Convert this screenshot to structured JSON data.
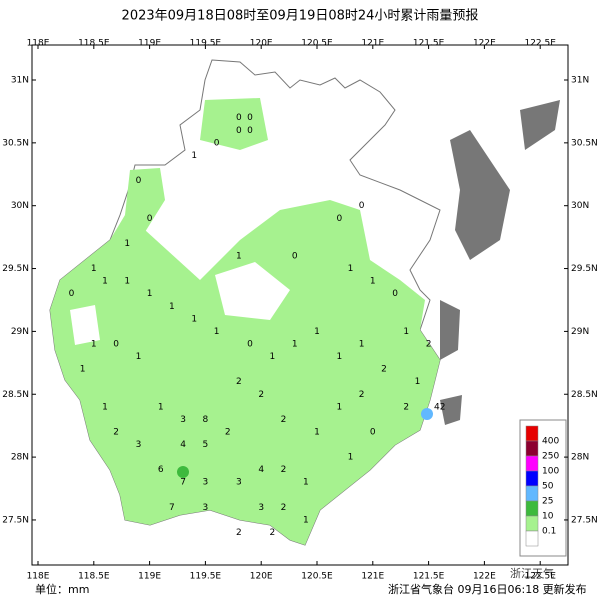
{
  "title": "2023年09月18日08时至09月19日08时24小时累计雨量预报",
  "lon_ticks": [
    {
      "value": 118,
      "label": "118E"
    },
    {
      "value": 118.5,
      "label": "118.5E"
    },
    {
      "value": 119,
      "label": "119E"
    },
    {
      "value": 119.5,
      "label": "119.5E"
    },
    {
      "value": 120,
      "label": "120E"
    },
    {
      "value": 120.5,
      "label": "120.5E"
    },
    {
      "value": 121,
      "label": "121E"
    },
    {
      "value": 121.5,
      "label": "121.5E"
    },
    {
      "value": 122,
      "label": "122E"
    },
    {
      "value": 122.5,
      "label": "122.5E"
    }
  ],
  "lat_ticks": [
    {
      "value": 31,
      "label": "31N"
    },
    {
      "value": 30.5,
      "label": "30.5N"
    },
    {
      "value": 30,
      "label": "30N"
    },
    {
      "value": 29.5,
      "label": "29.5N"
    },
    {
      "value": 29,
      "label": "29N"
    },
    {
      "value": 28.5,
      "label": "28.5N"
    },
    {
      "value": 28,
      "label": "28N"
    },
    {
      "value": 27.5,
      "label": "27.5N"
    }
  ],
  "legend": [
    {
      "label": "400",
      "color": "#e60000"
    },
    {
      "label": "250",
      "color": "#8c0030"
    },
    {
      "label": "100",
      "color": "#ff00ff"
    },
    {
      "label": "50",
      "color": "#0000ff"
    },
    {
      "label": "25",
      "color": "#61b8ff"
    },
    {
      "label": "10",
      "color": "#3dba3d"
    },
    {
      "label": "0.1",
      "color": "#a6f28f"
    }
  ],
  "stations": [
    {
      "lon": 119.8,
      "lat": 30.7,
      "value": 0
    },
    {
      "lon": 119.9,
      "lat": 30.7,
      "value": 0
    },
    {
      "lon": 119.8,
      "lat": 30.6,
      "value": 0
    },
    {
      "lon": 119.9,
      "lat": 30.6,
      "value": 0
    },
    {
      "lon": 119.6,
      "lat": 30.5,
      "value": 0
    },
    {
      "lon": 119.4,
      "lat": 30.4,
      "value": 1
    },
    {
      "lon": 118.9,
      "lat": 30.2,
      "value": 0
    },
    {
      "lon": 119.0,
      "lat": 29.9,
      "value": 0
    },
    {
      "lon": 118.8,
      "lat": 29.7,
      "value": 1
    },
    {
      "lon": 118.5,
      "lat": 29.5,
      "value": 1
    },
    {
      "lon": 118.3,
      "lat": 29.3,
      "value": 0
    },
    {
      "lon": 118.6,
      "lat": 29.4,
      "value": 1
    },
    {
      "lon": 118.8,
      "lat": 29.4,
      "value": 1
    },
    {
      "lon": 119.0,
      "lat": 29.3,
      "value": 1
    },
    {
      "lon": 119.2,
      "lat": 29.2,
      "value": 1
    },
    {
      "lon": 119.4,
      "lat": 29.1,
      "value": 1
    },
    {
      "lon": 119.6,
      "lat": 29.0,
      "value": 1
    },
    {
      "lon": 119.8,
      "lat": 29.6,
      "value": 1
    },
    {
      "lon": 120.3,
      "lat": 29.6,
      "value": 0
    },
    {
      "lon": 120.7,
      "lat": 29.9,
      "value": 0
    },
    {
      "lon": 120.9,
      "lat": 30.0,
      "value": 0
    },
    {
      "lon": 120.8,
      "lat": 29.5,
      "value": 1
    },
    {
      "lon": 121.0,
      "lat": 29.4,
      "value": 1
    },
    {
      "lon": 121.2,
      "lat": 29.3,
      "value": 0
    },
    {
      "lon": 121.3,
      "lat": 29.0,
      "value": 1
    },
    {
      "lon": 121.5,
      "lat": 28.9,
      "value": 2
    },
    {
      "lon": 121.4,
      "lat": 28.6,
      "value": 1
    },
    {
      "lon": 121.3,
      "lat": 28.4,
      "value": 2
    },
    {
      "lon": 121.1,
      "lat": 28.7,
      "value": 2
    },
    {
      "lon": 120.9,
      "lat": 28.9,
      "value": 1
    },
    {
      "lon": 120.7,
      "lat": 28.8,
      "value": 1
    },
    {
      "lon": 120.5,
      "lat": 29.0,
      "value": 1
    },
    {
      "lon": 120.3,
      "lat": 28.9,
      "value": 1
    },
    {
      "lon": 120.1,
      "lat": 28.8,
      "value": 1
    },
    {
      "lon": 119.9,
      "lat": 28.9,
      "value": 0
    },
    {
      "lon": 118.9,
      "lat": 28.8,
      "value": 1
    },
    {
      "lon": 118.7,
      "lat": 28.9,
      "value": 0
    },
    {
      "lon": 118.5,
      "lat": 28.9,
      "value": 1
    },
    {
      "lon": 118.4,
      "lat": 28.7,
      "value": 1
    },
    {
      "lon": 118.6,
      "lat": 28.4,
      "value": 1
    },
    {
      "lon": 118.7,
      "lat": 28.2,
      "value": 2
    },
    {
      "lon": 118.9,
      "lat": 28.1,
      "value": 3
    },
    {
      "lon": 119.1,
      "lat": 28.4,
      "value": 1
    },
    {
      "lon": 119.3,
      "lat": 28.3,
      "value": 3
    },
    {
      "lon": 119.5,
      "lat": 28.3,
      "value": 8
    },
    {
      "lon": 119.3,
      "lat": 28.1,
      "value": 4
    },
    {
      "lon": 119.5,
      "lat": 28.1,
      "value": 5
    },
    {
      "lon": 119.7,
      "lat": 28.2,
      "value": 2
    },
    {
      "lon": 119.1,
      "lat": 27.9,
      "value": 6
    },
    {
      "lon": 119.3,
      "lat": 27.8,
      "value": 7
    },
    {
      "lon": 119.5,
      "lat": 27.8,
      "value": 3
    },
    {
      "lon": 119.2,
      "lat": 27.6,
      "value": 7
    },
    {
      "lon": 119.5,
      "lat": 27.6,
      "value": 3
    },
    {
      "lon": 119.8,
      "lat": 27.8,
      "value": 3
    },
    {
      "lon": 120.0,
      "lat": 27.9,
      "value": 4
    },
    {
      "lon": 120.2,
      "lat": 27.9,
      "value": 2
    },
    {
      "lon": 120.4,
      "lat": 27.8,
      "value": 1
    },
    {
      "lon": 120.0,
      "lat": 27.6,
      "value": 3
    },
    {
      "lon": 120.2,
      "lat": 27.6,
      "value": 2
    },
    {
      "lon": 120.4,
      "lat": 27.5,
      "value": 1
    },
    {
      "lon": 119.8,
      "lat": 27.4,
      "value": 2
    },
    {
      "lon": 120.1,
      "lat": 27.4,
      "value": 2
    },
    {
      "lon": 120.5,
      "lat": 28.2,
      "value": 1
    },
    {
      "lon": 120.7,
      "lat": 28.4,
      "value": 1
    },
    {
      "lon": 120.9,
      "lat": 28.5,
      "value": 2
    },
    {
      "lon": 121.0,
      "lat": 28.2,
      "value": 0
    },
    {
      "lon": 120.8,
      "lat": 28.0,
      "value": 1
    },
    {
      "lon": 120.2,
      "lat": 28.3,
      "value": 2
    },
    {
      "lon": 120.0,
      "lat": 28.5,
      "value": 2
    },
    {
      "lon": 119.8,
      "lat": 28.6,
      "value": 2
    },
    {
      "lon": 121.6,
      "lat": 28.4,
      "value": 42
    }
  ],
  "footer": {
    "unit": "单位：mm",
    "issuer": "浙江省气象台 09月16日06:18 更新发布",
    "watermark": "浙江天气"
  }
}
